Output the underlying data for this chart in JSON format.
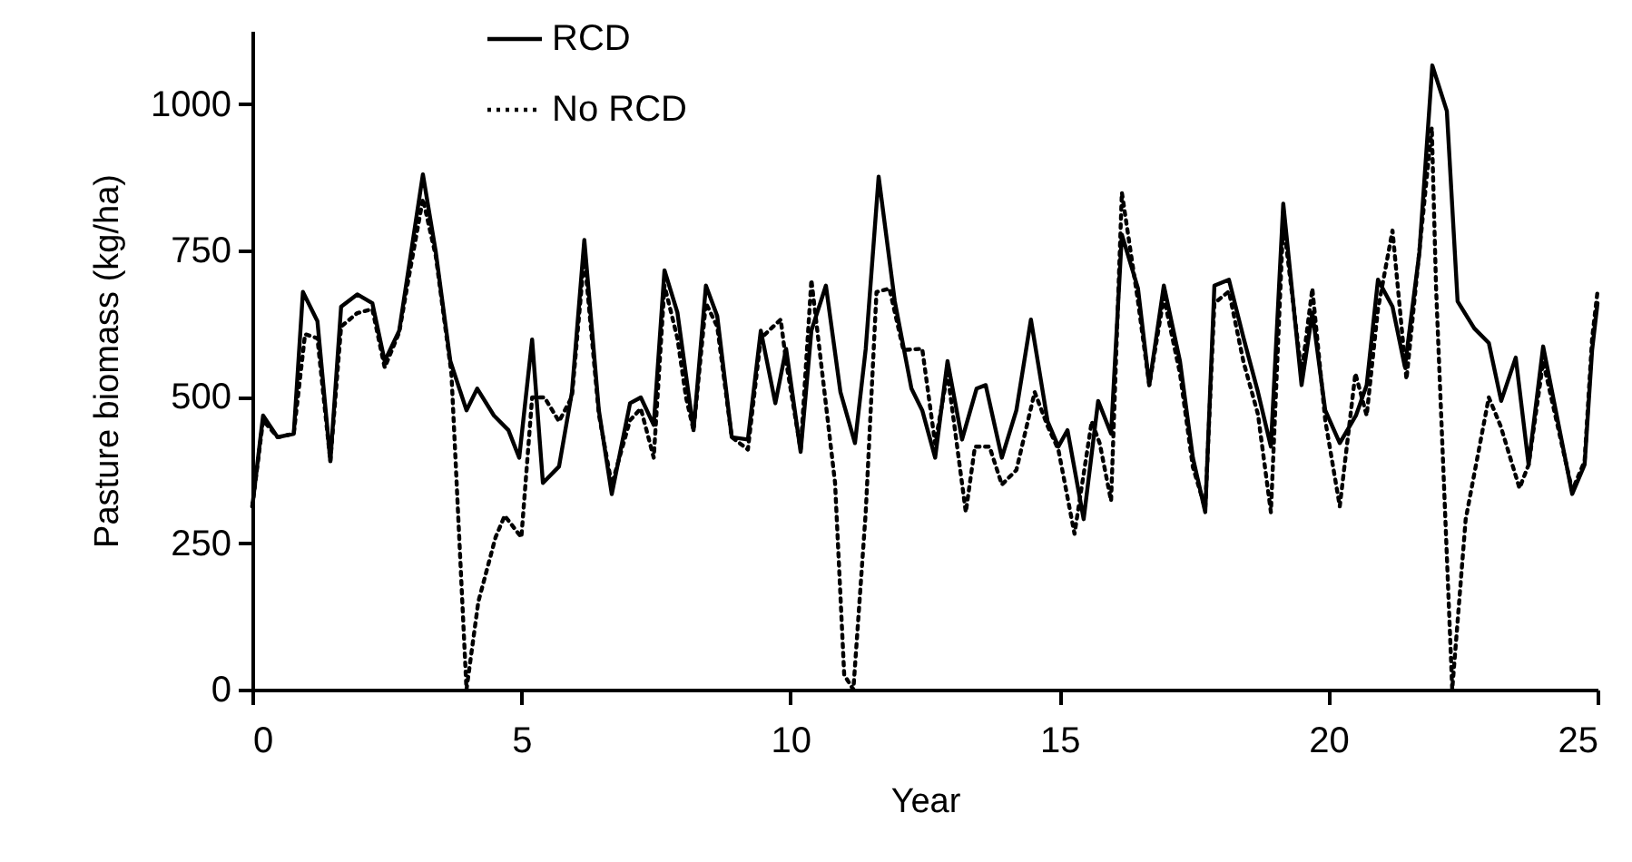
{
  "chart_data": {
    "type": "line",
    "xlabel": "Year",
    "ylabel": "Pasture biomass (kg/ha)",
    "xlim": [
      0,
      25
    ],
    "xticks": [
      0,
      5,
      10,
      15,
      20,
      25
    ],
    "ylim": [
      0,
      1125
    ],
    "yticks": [
      0,
      250,
      500,
      750,
      1000
    ],
    "legend": "top",
    "series": [
      {
        "name": "RCD",
        "color": "#000000",
        "line_style": "solid",
        "x": [
          0,
          0.2,
          0.47,
          0.77,
          0.94,
          1.21,
          1.45,
          1.65,
          1.95,
          2.23,
          2.46,
          2.73,
          2.9,
          3.17,
          3.41,
          3.68,
          3.98,
          4.18,
          4.49,
          4.76,
          4.96,
          5.2,
          5.4,
          5.7,
          5.94,
          6.17,
          6.44,
          6.68,
          7.02,
          7.22,
          7.46,
          7.66,
          7.9,
          8.2,
          8.43,
          8.64,
          8.91,
          9.21,
          9.45,
          9.72,
          9.92,
          10.19,
          10.39,
          10.66,
          10.93,
          11.2,
          11.4,
          11.64,
          11.94,
          12.25,
          12.45,
          12.69,
          12.92,
          13.19,
          13.46,
          13.63,
          13.93,
          14.2,
          14.47,
          14.78,
          14.98,
          15.15,
          15.45,
          15.72,
          15.96,
          16.16,
          16.46,
          16.67,
          16.94,
          17.24,
          17.48,
          17.71,
          17.88,
          18.15,
          18.42,
          18.69,
          18.93,
          19.16,
          19.5,
          19.7,
          19.94,
          20.21,
          20.51,
          20.71,
          20.92,
          21.19,
          21.42,
          21.69,
          21.93,
          22.2,
          22.4,
          22.71,
          22.98,
          23.21,
          23.48,
          23.72,
          23.99,
          24.53,
          24.76,
          24.9,
          25
        ],
        "values": [
          313,
          468,
          431,
          437,
          679,
          629,
          390,
          654,
          675,
          660,
          561,
          613,
          716,
          880,
          747,
          561,
          477,
          514,
          468,
          443,
          396,
          598,
          353,
          381,
          508,
          768,
          477,
          334,
          489,
          499,
          452,
          716,
          644,
          443,
          690,
          638,
          431,
          427,
          613,
          489,
          582,
          406,
          613,
          690,
          508,
          421,
          582,
          876,
          663,
          514,
          477,
          396,
          561,
          427,
          514,
          520,
          396,
          477,
          632,
          458,
          415,
          443,
          291,
          493,
          437,
          777,
          685,
          520,
          690,
          561,
          396,
          303,
          690,
          700,
          601,
          508,
          415,
          830,
          520,
          644,
          477,
          421,
          468,
          520,
          700,
          654,
          551,
          747,
          1066,
          988,
          663,
          617,
          592,
          493,
          567,
          384,
          586,
          334,
          384,
          580,
          660
        ]
      },
      {
        "name": "No RCD",
        "color": "#000000",
        "line_style": "dotted",
        "x": [
          0,
          0.2,
          0.47,
          0.77,
          0.98,
          1.21,
          1.45,
          1.65,
          1.95,
          2.23,
          2.46,
          2.73,
          2.9,
          3.17,
          3.41,
          3.7,
          3.98,
          4.2,
          4.52,
          4.69,
          5.0,
          5.2,
          5.43,
          5.7,
          5.94,
          6.17,
          6.44,
          6.68,
          7.02,
          7.22,
          7.46,
          7.66,
          7.9,
          8.06,
          8.2,
          8.43,
          8.64,
          8.91,
          9.21,
          9.45,
          9.82,
          9.92,
          10.19,
          10.39,
          10.83,
          11.0,
          11.17,
          11.4,
          11.6,
          11.84,
          12.1,
          12.45,
          12.69,
          12.92,
          13.26,
          13.43,
          13.7,
          13.93,
          14.2,
          14.54,
          14.78,
          14.98,
          15.28,
          15.6,
          15.75,
          15.96,
          16.16,
          16.46,
          16.67,
          16.94,
          17.24,
          17.48,
          17.71,
          17.88,
          18.15,
          18.42,
          18.69,
          18.93,
          19.16,
          19.5,
          19.7,
          19.94,
          20.21,
          20.5,
          20.71,
          20.92,
          21.19,
          21.45,
          21.92,
          22.0,
          22.3,
          22.55,
          22.98,
          23.2,
          23.55,
          23.72,
          23.99,
          24.53,
          24.76,
          24.9,
          25
        ],
        "values": [
          313,
          460,
          431,
          437,
          607,
          600,
          390,
          620,
          643,
          650,
          550,
          610,
          700,
          838,
          740,
          540,
          0,
          150,
          260,
          297,
          260,
          499,
          499,
          458,
          500,
          740,
          470,
          350,
          460,
          480,
          396,
          690,
          600,
          499,
          443,
          660,
          620,
          431,
          410,
          600,
          632,
          560,
          410,
          700,
          353,
          25,
          0,
          303,
          679,
          685,
          580,
          582,
          420,
          540,
          303,
          415,
          415,
          350,
          375,
          508,
          450,
          410,
          266,
          458,
          420,
          322,
          849,
          663,
          520,
          670,
          540,
          380,
          310,
          660,
          680,
          560,
          470,
          303,
          800,
          540,
          685,
          460,
          313,
          540,
          468,
          650,
          784,
          530,
          960,
          685,
          0,
          291,
          499,
          450,
          344,
          384,
          560,
          340,
          390,
          600,
          680
        ]
      }
    ]
  }
}
